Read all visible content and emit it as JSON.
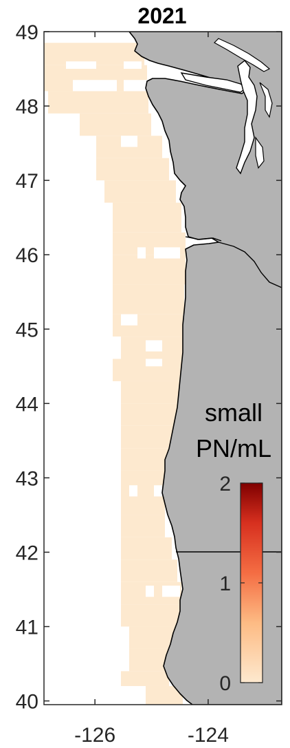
{
  "title": "2021",
  "chart_data": {
    "type": "heatmap",
    "title": "2021",
    "xlabel": "",
    "ylabel": "",
    "xlim": [
      -126.9,
      -122.7
    ],
    "ylim": [
      39.95,
      49.0
    ],
    "x_ticks": [
      -126,
      -124
    ],
    "x_tick_labels": [
      "-126",
      "-124"
    ],
    "y_ticks": [
      40,
      41,
      42,
      43,
      44,
      45,
      46,
      47,
      48,
      49
    ],
    "y_tick_labels": [
      "40",
      "41",
      "42",
      "43",
      "44",
      "45",
      "46",
      "47",
      "48",
      "49"
    ],
    "value_note_observed": "all observed cells near 0 small PN/mL",
    "colorbar": {
      "label_line1": "small",
      "label_line2": "PN/mL",
      "ticks": [
        0,
        1,
        2
      ],
      "tick_labels": [
        "0",
        "1",
        "2"
      ],
      "range": [
        0,
        2
      ],
      "colors": [
        "#fde7c9",
        "#fdbb84",
        "#f46d43",
        "#d7301f",
        "#7f0000"
      ]
    },
    "land_color": "#b3b3b3",
    "cell_color": "#fde9cf",
    "state_border_lat": 42.0
  }
}
